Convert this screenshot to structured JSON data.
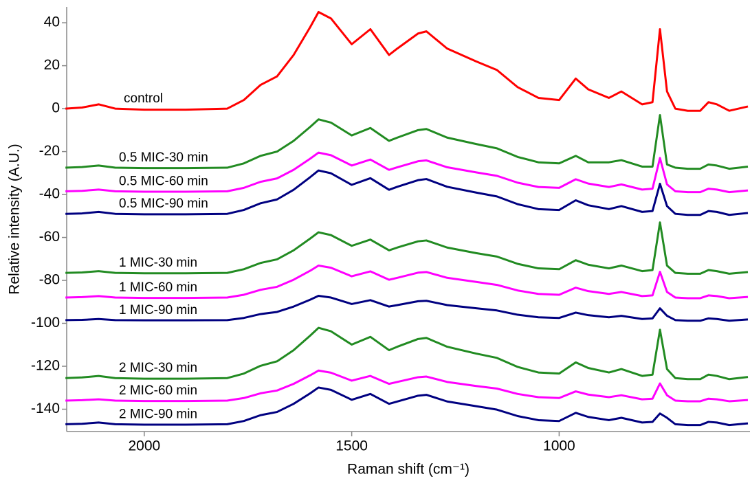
{
  "chart_data": {
    "type": "line",
    "x_label": "Raman shift (cm⁻¹)",
    "y_label": "Relative intensity (A.U.)",
    "x": [
      2190,
      2150,
      2110,
      2070,
      2000,
      1900,
      1800,
      1760,
      1720,
      1680,
      1640,
      1600,
      1580,
      1550,
      1500,
      1455,
      1410,
      1390,
      1340,
      1320,
      1270,
      1200,
      1150,
      1100,
      1050,
      1000,
      960,
      930,
      880,
      850,
      800,
      775,
      757,
      740,
      720,
      690,
      660,
      640,
      620,
      590,
      545
    ],
    "xlim": [
      2187,
      540
    ],
    "xticks": [
      2000,
      1500,
      1000
    ],
    "ylim": [
      -150.4,
      47.4
    ],
    "yticks": [
      40,
      20,
      0,
      -20,
      -40,
      -60,
      -80,
      -100,
      -120,
      -140
    ],
    "series": [
      {
        "name": "control",
        "color": "#ff0000",
        "values": [
          0,
          0.5,
          2,
          0,
          -0.5,
          -0.5,
          0,
          4,
          11,
          15,
          25,
          38,
          45,
          42,
          30,
          37,
          25,
          28,
          35,
          36,
          28,
          22,
          18,
          10,
          5,
          4,
          14,
          9,
          5,
          8,
          2,
          3,
          37,
          8,
          0,
          -1,
          -1,
          3,
          2,
          -1,
          1
        ]
      },
      {
        "name": "0.5 MIC-30 min",
        "color": "#228b22",
        "values": [
          -27.5,
          -27.2,
          -26.5,
          -27.5,
          -27.7,
          -27.7,
          -27.5,
          -25.5,
          -22,
          -20,
          -15,
          -8.5,
          -5,
          -6.5,
          -12.5,
          -9,
          -15,
          -13.5,
          -10,
          -9.5,
          -13.5,
          -16.5,
          -18.5,
          -22.5,
          -25,
          -25.5,
          -22,
          -25,
          -25,
          -24,
          -27,
          -27,
          -3,
          -26,
          -27.5,
          -28,
          -28,
          -26,
          -26.5,
          -28,
          -27
        ]
      },
      {
        "name": "0.5 MIC-60 min",
        "color": "#ff00ff",
        "values": [
          -38.5,
          -38.3,
          -37.7,
          -38.5,
          -38.7,
          -38.7,
          -38.5,
          -36.9,
          -34.1,
          -32.5,
          -28.5,
          -23.3,
          -20.5,
          -21.7,
          -26.5,
          -23.7,
          -28.5,
          -27.3,
          -24.5,
          -24.1,
          -27.3,
          -29.7,
          -31.3,
          -34.5,
          -36.5,
          -36.9,
          -32.9,
          -34.9,
          -36.5,
          -35.3,
          -37.7,
          -37.3,
          -23,
          -35.3,
          -38.5,
          -38.9,
          -38.9,
          -37.3,
          -37.7,
          -38.9,
          -38.1
        ]
      },
      {
        "name": "0.5 MIC-90 min",
        "color": "#000080",
        "values": [
          -49,
          -48.8,
          -48.1,
          -49,
          -49.2,
          -49.2,
          -49,
          -47.2,
          -44.1,
          -42.3,
          -37.8,
          -31.9,
          -28.8,
          -30.1,
          -35.5,
          -32.4,
          -37.8,
          -36.4,
          -33.3,
          -32.8,
          -36.4,
          -39.1,
          -40.9,
          -44.5,
          -46.8,
          -47.2,
          -42.7,
          -45,
          -46.8,
          -45.4,
          -48.1,
          -47.7,
          -35,
          -45.4,
          -49,
          -49.5,
          -49.5,
          -47.7,
          -48.1,
          -49.5,
          -48.6
        ]
      },
      {
        "name": "1 MIC-30 min",
        "color": "#228b22",
        "values": [
          -76.5,
          -76.3,
          -75.7,
          -76.5,
          -76.7,
          -76.7,
          -76.5,
          -74.8,
          -71.9,
          -70.2,
          -66,
          -60.5,
          -57.6,
          -58.9,
          -63.9,
          -61,
          -66,
          -64.7,
          -61.8,
          -61.4,
          -64.7,
          -67.3,
          -68.9,
          -72.3,
          -74.4,
          -74.8,
          -70.6,
          -72.7,
          -74.4,
          -73.1,
          -75.7,
          -75.2,
          -53,
          -73.1,
          -76.5,
          -76.9,
          -76.9,
          -75.2,
          -75.7,
          -76.9,
          -76.1
        ]
      },
      {
        "name": "1 MIC-60 min",
        "color": "#ff00ff",
        "values": [
          -88,
          -87.8,
          -87.3,
          -88,
          -88.2,
          -88.2,
          -88,
          -86.7,
          -84.4,
          -83,
          -79.7,
          -75.5,
          -73.1,
          -74.1,
          -78.1,
          -75.8,
          -79.7,
          -78.8,
          -76.4,
          -76.1,
          -78.8,
          -80.7,
          -82.1,
          -84.7,
          -86.3,
          -86.7,
          -83.4,
          -85,
          -86.3,
          -85.4,
          -87.3,
          -87,
          -76,
          -85.4,
          -88,
          -88.3,
          -88.3,
          -87,
          -87.3,
          -88.3,
          -87.7
        ]
      },
      {
        "name": "1 MIC-90 min",
        "color": "#000080",
        "values": [
          -98.5,
          -98.4,
          -98,
          -98.5,
          -98.6,
          -98.6,
          -98.5,
          -97.5,
          -95.7,
          -94.7,
          -92.2,
          -89,
          -87.2,
          -88,
          -91,
          -89.2,
          -92.2,
          -91.5,
          -89.7,
          -89.5,
          -91.5,
          -93,
          -94,
          -96,
          -97.2,
          -97.5,
          -95,
          -96.2,
          -97.2,
          -96.5,
          -98,
          -97.7,
          -93,
          -96.5,
          -98.5,
          -98.8,
          -98.8,
          -97.7,
          -98,
          -98.8,
          -98.2
        ]
      },
      {
        "name": "2 MIC-30 min",
        "color": "#228b22",
        "values": [
          -125.5,
          -125.2,
          -124.5,
          -125.5,
          -125.8,
          -125.8,
          -125.5,
          -123.4,
          -119.8,
          -117.7,
          -112.5,
          -105.7,
          -102.1,
          -103.7,
          -109.9,
          -106.3,
          -112.5,
          -110.9,
          -107.3,
          -106.8,
          -110.9,
          -114.1,
          -116.1,
          -120.3,
          -122.9,
          -123.4,
          -118.2,
          -120.8,
          -122.9,
          -121.3,
          -124.5,
          -123.9,
          -103,
          -121.3,
          -125.5,
          -126,
          -126,
          -123.9,
          -124.5,
          -126,
          -125
        ]
      },
      {
        "name": "2 MIC-60 min",
        "color": "#ff00ff",
        "values": [
          -136,
          -135.8,
          -135.4,
          -136,
          -136.2,
          -136.2,
          -136,
          -134.8,
          -132.6,
          -131.3,
          -128.2,
          -124.2,
          -122,
          -123,
          -126.7,
          -124.5,
          -128.2,
          -127.3,
          -125.1,
          -124.8,
          -127.3,
          -129.2,
          -130.4,
          -132.9,
          -134.4,
          -134.8,
          -131.7,
          -133.2,
          -134.4,
          -133.5,
          -135.4,
          -135.1,
          -128,
          -133.5,
          -136,
          -136.3,
          -136.3,
          -135.1,
          -135.4,
          -136.3,
          -135.7
        ]
      },
      {
        "name": "2 MIC-90 min",
        "color": "#000080",
        "values": [
          -147,
          -146.8,
          -146.2,
          -147,
          -147.2,
          -147.2,
          -147,
          -145.5,
          -142.8,
          -141.3,
          -137.5,
          -132.6,
          -129.9,
          -131,
          -135.6,
          -132.9,
          -137.5,
          -136.4,
          -133.7,
          -133.3,
          -136.4,
          -138.6,
          -140.2,
          -143.2,
          -145.1,
          -145.5,
          -141.7,
          -143.6,
          -145.1,
          -144,
          -146.2,
          -145.9,
          -142,
          -144,
          -147,
          -147.4,
          -147.4,
          -145.9,
          -146.2,
          -147.4,
          -146.6
        ]
      }
    ]
  }
}
